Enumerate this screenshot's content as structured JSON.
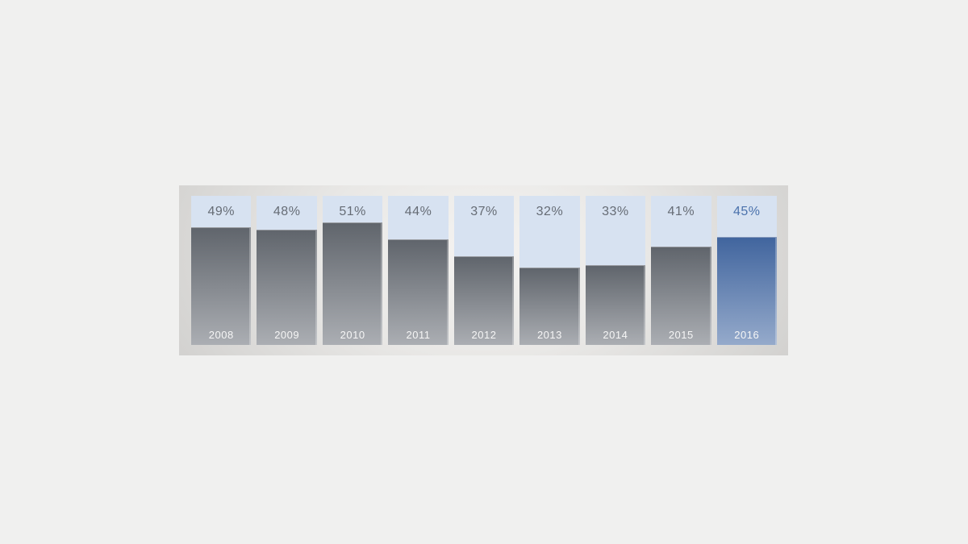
{
  "page": {
    "background_color": "#f0f0ef"
  },
  "panel": {
    "center_color": "#f4f3f1",
    "mid_color": "#e9e8e6",
    "edge_color": "#cecdcb"
  },
  "chart_data": {
    "type": "bar",
    "title": "",
    "categories": [
      "2008",
      "2009",
      "2010",
      "2011",
      "2012",
      "2013",
      "2014",
      "2015",
      "2016"
    ],
    "values": [
      49,
      48,
      51,
      44,
      37,
      32,
      33,
      41,
      45
    ],
    "value_labels": [
      "49%",
      "48%",
      "51%",
      "44%",
      "37%",
      "32%",
      "33%",
      "41%",
      "45%"
    ],
    "unit": "%",
    "ylim": [
      0,
      62.6
    ],
    "grid": false,
    "legend": false,
    "axis_labels": false,
    "highlight_category": "2016",
    "colors": {
      "column_background": "#d7e2f1",
      "bar_gradient_top": "#60656c",
      "bar_gradient_bottom": "#abaeb3",
      "highlight_bar_gradient_top": "#41659e",
      "highlight_bar_gradient_bottom": "#95aacb",
      "value_label": "#666c75",
      "highlight_value_label": "#4b72ac",
      "category_label": "#f6f6f6"
    }
  }
}
